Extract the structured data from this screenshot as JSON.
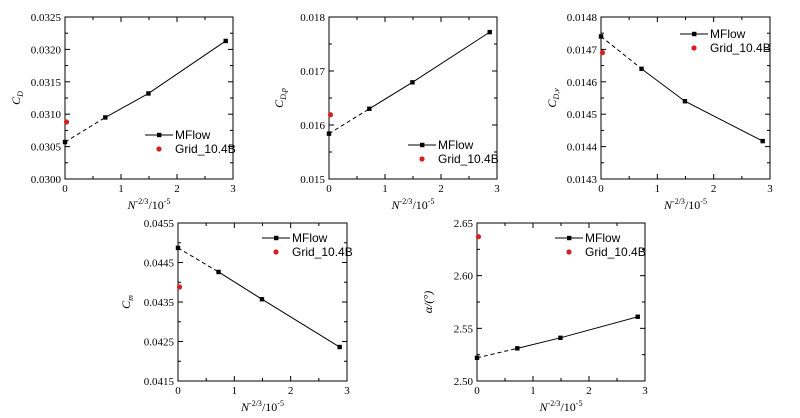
{
  "chart_data": [
    {
      "type": "line",
      "ylabel_main": "C",
      "ylabel_sub": "D",
      "xlabel_main": "N",
      "xlabel_sup": "-2/3",
      "xlabel_tail": "/10",
      "xlabel_tail_sup": "-5",
      "xlim": [
        0,
        3
      ],
      "xticks": [
        "0",
        "1",
        "2",
        "3"
      ],
      "ylim": [
        0.03,
        0.0325
      ],
      "yticks": [
        "0.0300",
        "0.0305",
        "0.0310",
        "0.0315",
        "0.0320",
        "0.0325"
      ],
      "series": [
        {
          "name": "MFlow",
          "x": [
            0.72,
            1.49,
            2.87
          ],
          "y": [
            0.03095,
            0.03132,
            0.03213
          ]
        },
        {
          "name": "Grid_10.4B",
          "x": [
            0
          ],
          "y": [
            0.03088
          ]
        }
      ],
      "extrapolation": {
        "x": [
          0,
          0.72
        ],
        "y": [
          0.03057,
          0.03095
        ]
      },
      "legend_position": "center-right"
    },
    {
      "type": "line",
      "ylabel_main": "C",
      "ylabel_sub": "D,p",
      "xlabel_main": "N",
      "xlabel_sup": "-2/3",
      "xlabel_tail": "/10",
      "xlabel_tail_sup": "-5",
      "xlim": [
        0,
        3
      ],
      "xticks": [
        "0",
        "1",
        "2",
        "3"
      ],
      "ylim": [
        0.015,
        0.018
      ],
      "yticks": [
        "0.015",
        "0.016",
        "0.017",
        "0.018"
      ],
      "series": [
        {
          "name": "MFlow",
          "x": [
            0.72,
            1.49,
            2.87
          ],
          "y": [
            0.0163,
            0.01679,
            0.01772
          ]
        },
        {
          "name": "Grid_10.4B",
          "x": [
            0
          ],
          "y": [
            0.01619
          ]
        }
      ],
      "extrapolation": {
        "x": [
          0,
          0.72
        ],
        "y": [
          0.01584,
          0.0163
        ]
      },
      "legend_position": "lower-right"
    },
    {
      "type": "line",
      "ylabel_main": "C",
      "ylabel_sub": "D,v",
      "xlabel_main": "N",
      "xlabel_sup": "-2/3",
      "xlabel_tail": "/10",
      "xlabel_tail_sup": "-5",
      "xlim": [
        0,
        3
      ],
      "xticks": [
        "0",
        "1",
        "2",
        "3"
      ],
      "ylim": [
        0.0143,
        0.0148
      ],
      "yticks": [
        "0.0143",
        "0.0144",
        "0.0145",
        "0.0146",
        "0.0147",
        "0.0148"
      ],
      "series": [
        {
          "name": "MFlow",
          "x": [
            0.72,
            1.49,
            2.87
          ],
          "y": [
            0.01464,
            0.01454,
            0.014417
          ]
        },
        {
          "name": "Grid_10.4B",
          "x": [
            0
          ],
          "y": [
            0.01469
          ]
        }
      ],
      "extrapolation": {
        "x": [
          0,
          0.72
        ],
        "y": [
          0.01474,
          0.01464
        ]
      },
      "legend_position": "top-right"
    },
    {
      "type": "line",
      "ylabel_main": "C",
      "ylabel_sub": "m",
      "xlabel_main": "N",
      "xlabel_sup": "-2/3",
      "xlabel_tail": "/10",
      "xlabel_tail_sup": "-5",
      "xlim": [
        0,
        3
      ],
      "xticks": [
        "0",
        "1",
        "2",
        "3"
      ],
      "ylim": [
        0.0415,
        0.0455
      ],
      "yticks": [
        "0.0415",
        "0.0425",
        "0.0435",
        "0.0445",
        "0.0455"
      ],
      "series": [
        {
          "name": "MFlow",
          "x": [
            0.72,
            1.49,
            2.87
          ],
          "y": [
            0.04426,
            0.04357,
            0.04236
          ]
        },
        {
          "name": "Grid_10.4B",
          "x": [
            0
          ],
          "y": [
            0.04388
          ]
        }
      ],
      "extrapolation": {
        "x": [
          0,
          0.72
        ],
        "y": [
          0.04487,
          0.04426
        ]
      },
      "legend_position": "top-right"
    },
    {
      "type": "line",
      "ylabel_main": "α/(°)",
      "ylabel_sub": "",
      "xlabel_main": "N",
      "xlabel_sup": "-2/3",
      "xlabel_tail": "/10",
      "xlabel_tail_sup": "-5",
      "xlim": [
        0,
        3
      ],
      "xticks": [
        "0",
        "1",
        "2",
        "3"
      ],
      "ylim": [
        2.5,
        2.65
      ],
      "yticks": [
        "2.50",
        "2.55",
        "2.60",
        "2.65"
      ],
      "series": [
        {
          "name": "MFlow",
          "x": [
            0.72,
            1.49,
            2.87
          ],
          "y": [
            2.531,
            2.541,
            2.561
          ]
        },
        {
          "name": "Grid_10.4B",
          "x": [
            0
          ],
          "y": [
            2.637
          ]
        }
      ],
      "extrapolation": {
        "x": [
          0,
          0.72
        ],
        "y": [
          2.522,
          2.531
        ]
      },
      "legend_position": "top-right"
    }
  ],
  "colors": {
    "line": "#000000",
    "reference_point": "#d42020"
  }
}
